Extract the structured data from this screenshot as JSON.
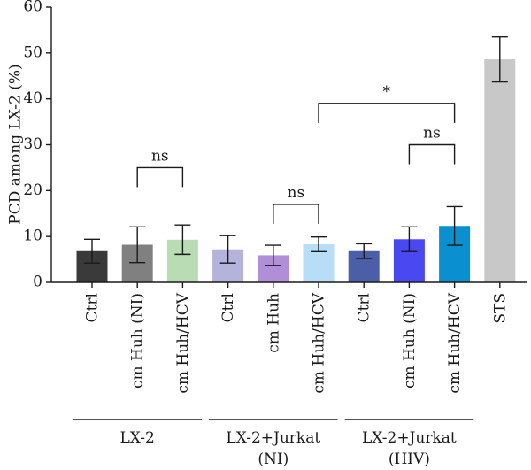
{
  "chart_data": {
    "type": "bar",
    "ylabel": "PCD among LX-2 (%)",
    "ylim": [
      0,
      60
    ],
    "yticks": [
      0,
      10,
      20,
      30,
      40,
      50,
      60
    ],
    "categories": [
      "Ctrl",
      "cm Huh (NI)",
      "cm Huh/HCV",
      "Ctrl",
      "cm Huh",
      "cm Huh/HCV",
      "Ctrl",
      "cm Huh (NI)",
      "cm Huh/HCV",
      "STS"
    ],
    "values": [
      6.8,
      8.2,
      9.3,
      7.2,
      5.9,
      8.3,
      6.8,
      9.4,
      12.3,
      48.6
    ],
    "errors": [
      2.6,
      3.9,
      3.2,
      3.0,
      2.2,
      1.6,
      1.6,
      2.7,
      4.2,
      4.9
    ],
    "colors": [
      "#3a3a3a",
      "#808080",
      "#b9dcb4",
      "#b4b3db",
      "#b08fd8",
      "#b8ddf6",
      "#4a5fa8",
      "#4a48f0",
      "#0a8fd0",
      "#c8c8c8"
    ],
    "groups": [
      {
        "label_lines": [
          "LX-2"
        ],
        "start": 0,
        "end": 2
      },
      {
        "label_lines": [
          "LX-2+Jurkat",
          "(NI)"
        ],
        "start": 3,
        "end": 5
      },
      {
        "label_lines": [
          "LX-2+Jurkat",
          "(HIV)"
        ],
        "start": 6,
        "end": 8
      }
    ],
    "annotations": [
      {
        "text": "ns",
        "from": 1,
        "to": 2,
        "y": 25
      },
      {
        "text": "ns",
        "from": 4,
        "to": 5,
        "y": 17
      },
      {
        "text": "ns",
        "from": 7,
        "to": 8,
        "y": 30
      },
      {
        "text": "*",
        "from": 5,
        "to": 8,
        "y": 39
      }
    ],
    "grid": false,
    "legend": "none"
  }
}
